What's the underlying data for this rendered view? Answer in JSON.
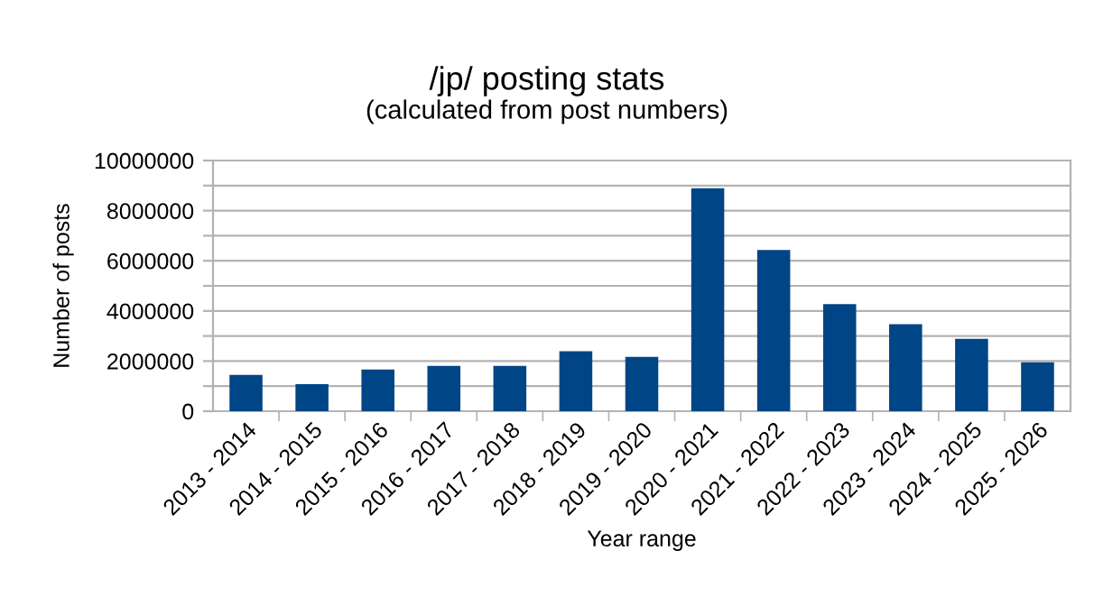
{
  "chart_data": {
    "type": "bar",
    "title": "/jp/ posting stats",
    "subtitle": "(calculated from post numbers)",
    "xlabel": "Year range",
    "ylabel": "Number of posts",
    "categories": [
      "2013 - 2014",
      "2014 - 2015",
      "2015 - 2016",
      "2016 - 2017",
      "2017 - 2018",
      "2018 - 2019",
      "2019 - 2020",
      "2020 - 2021",
      "2021 - 2022",
      "2022 - 2023",
      "2023 - 2024",
      "2024 - 2025",
      "2025 - 2026"
    ],
    "values": [
      1450000,
      1080000,
      1660000,
      1810000,
      1810000,
      2390000,
      2170000,
      8890000,
      6430000,
      4270000,
      3470000,
      2890000,
      1950000
    ],
    "color": "#004586",
    "ylim": [
      0,
      10000000
    ],
    "yticks": [
      0,
      {
        "value": 1000000,
        "label": null
      },
      2000000,
      {
        "value": 3000000,
        "label": null
      },
      4000000,
      {
        "value": 5000000,
        "label": null
      },
      6000000,
      {
        "value": 7000000,
        "label": null
      },
      8000000,
      {
        "value": 9000000,
        "label": null
      },
      10000000
    ],
    "grid": "y",
    "legend": false
  }
}
